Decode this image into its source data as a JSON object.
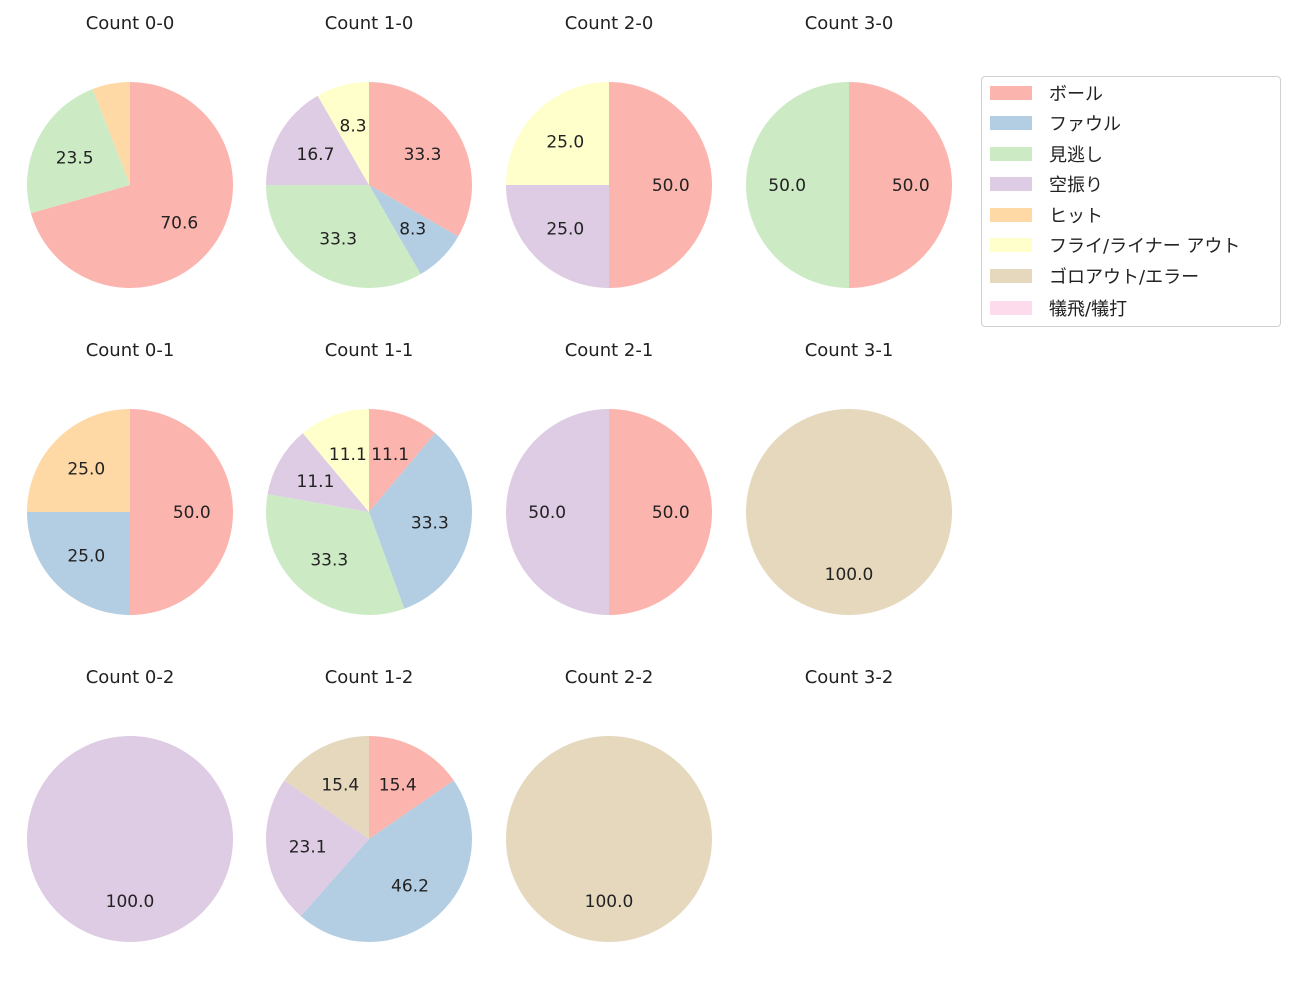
{
  "chart_data": {
    "type": "pie",
    "categories": [
      "ボール",
      "ファウル",
      "見逃し",
      "空振り",
      "ヒット",
      "フライ/ライナー アウト",
      "ゴロアウト/エラー",
      "犠飛/犠打"
    ],
    "colors": [
      "#fbb4ae",
      "#b3cde3",
      "#ccebc5",
      "#decbe4",
      "#fed9a6",
      "#ffffcc",
      "#e5d8bd",
      "#fddaec"
    ],
    "legend_position": "top-right",
    "start_angle": 90,
    "direction": "clockwise",
    "subplots": [
      {
        "title": "Count 0-0",
        "values": [
          70.6,
          0,
          23.5,
          0,
          5.9,
          0,
          0,
          0
        ],
        "labels": [
          "70.6",
          "",
          "23.5",
          "",
          "",
          "",
          "",
          ""
        ]
      },
      {
        "title": "Count 1-0",
        "values": [
          33.3,
          8.3,
          33.3,
          16.7,
          0,
          8.3,
          0,
          0
        ],
        "labels": [
          "33.3",
          "8.3",
          "33.3",
          "16.7",
          "",
          "8.3",
          "",
          ""
        ]
      },
      {
        "title": "Count 2-0",
        "values": [
          50.0,
          0,
          0,
          25.0,
          0,
          25.0,
          0,
          0
        ],
        "labels": [
          "50.0",
          "",
          "",
          "25.0",
          "",
          "25.0",
          "",
          ""
        ]
      },
      {
        "title": "Count 3-0",
        "values": [
          50.0,
          0,
          50.0,
          0,
          0,
          0,
          0,
          0
        ],
        "labels": [
          "50.0",
          "",
          "50.0",
          "",
          "",
          "",
          "",
          ""
        ]
      },
      {
        "title": "Count 0-1",
        "values": [
          50.0,
          25.0,
          0,
          0,
          25.0,
          0,
          0,
          0
        ],
        "labels": [
          "50.0",
          "25.0",
          "",
          "",
          "25.0",
          "",
          "",
          ""
        ]
      },
      {
        "title": "Count 1-1",
        "values": [
          11.1,
          33.3,
          33.3,
          11.1,
          0,
          11.1,
          0,
          0
        ],
        "labels": [
          "11.1",
          "33.3",
          "33.3",
          "11.1",
          "",
          "11.1",
          "",
          ""
        ]
      },
      {
        "title": "Count 2-1",
        "values": [
          50.0,
          0,
          0,
          50.0,
          0,
          0,
          0,
          0
        ],
        "labels": [
          "50.0",
          "",
          "",
          "50.0",
          "",
          "",
          "",
          ""
        ]
      },
      {
        "title": "Count 3-1",
        "values": [
          0,
          0,
          0,
          0,
          0,
          0,
          100.0,
          0
        ],
        "labels": [
          "",
          "",
          "",
          "",
          "",
          "",
          "100.0",
          ""
        ]
      },
      {
        "title": "Count 0-2",
        "values": [
          0,
          0,
          0,
          100.0,
          0,
          0,
          0,
          0
        ],
        "labels": [
          "",
          "",
          "",
          "100.0",
          "",
          "",
          "",
          ""
        ]
      },
      {
        "title": "Count 1-2",
        "values": [
          15.4,
          46.2,
          0,
          23.1,
          0,
          0,
          15.4,
          0
        ],
        "labels": [
          "15.4",
          "46.2",
          "",
          "23.1",
          "",
          "",
          "15.4",
          ""
        ]
      },
      {
        "title": "Count 2-2",
        "values": [
          0,
          0,
          0,
          0,
          0,
          0,
          100.0,
          0
        ],
        "labels": [
          "",
          "",
          "",
          "",
          "",
          "",
          "100.0",
          ""
        ]
      },
      {
        "title": "Count 3-2",
        "values": [],
        "labels": []
      }
    ]
  }
}
